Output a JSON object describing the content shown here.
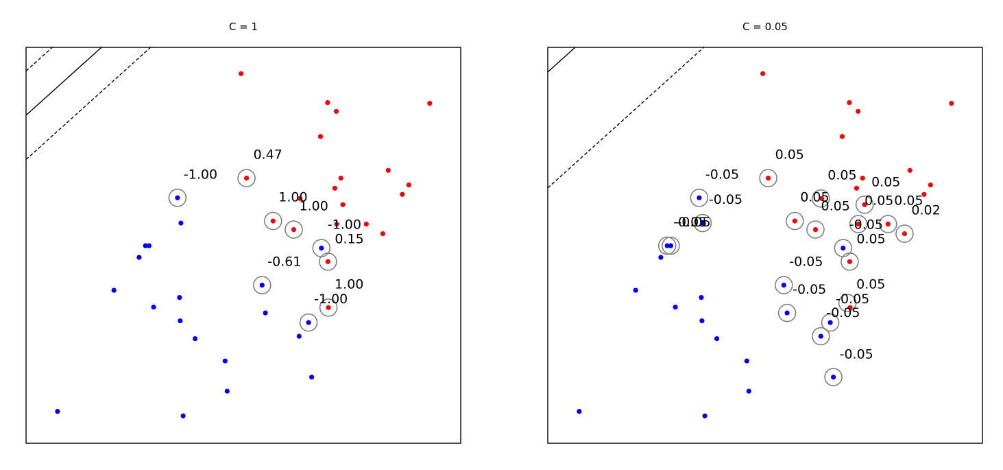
{
  "chart_data": [
    {
      "type": "scatter",
      "title": "C = 1",
      "xticks": "none",
      "yticks": "none",
      "grid": false,
      "colors": {
        "class_pos": "#ff0000",
        "class_neg": "#0000ff",
        "support_ring": "#808080"
      },
      "points_pos": [
        [
          313.6,
          38.3
        ],
        [
          439.9,
          80.6
        ],
        [
          452.6,
          93.3
        ],
        [
          588.8,
          81.6
        ],
        [
          429.5,
          129.9
        ],
        [
          528.3,
          179.3
        ],
        [
          459.2,
          190.6
        ],
        [
          558.3,
          200.6
        ],
        [
          450.4,
          205.3
        ],
        [
          548.8,
          214.3
        ],
        [
          399.5,
          220.3
        ],
        [
          462.1,
          229.3
        ],
        [
          321.6,
          190.6
        ],
        [
          496.3,
          257.6
        ],
        [
          453.1,
          257.6
        ],
        [
          360.3,
          253.1
        ],
        [
          390.5,
          265.6
        ],
        [
          520.4,
          271.6
        ],
        [
          440.4,
          312.3
        ],
        [
          441.1,
          379.3
        ]
      ],
      "points_neg": [
        [
          220.9,
          219.3
        ],
        [
          225.9,
          256.1
        ],
        [
          174.2,
          289.1
        ],
        [
          179.4,
          289.1
        ],
        [
          164.9,
          306.1
        ],
        [
          128.2,
          354.1
        ],
        [
          186.1,
          378.6
        ],
        [
          223.9,
          364.6
        ],
        [
          224.9,
          398.6
        ],
        [
          246.6,
          424.6
        ],
        [
          290.3,
          457.1
        ],
        [
          293.3,
          501.1
        ],
        [
          45.9,
          530.6
        ],
        [
          229.1,
          537.1
        ],
        [
          416.6,
          480.6
        ],
        [
          344.3,
          346.6
        ],
        [
          349.1,
          387.1
        ],
        [
          398.3,
          421.1
        ],
        [
          430.8,
          292.6
        ],
        [
          412.1,
          401.1
        ]
      ],
      "support_vectors": [
        [
          321.6,
          190.6
        ],
        [
          360.3,
          253.1
        ],
        [
          390.5,
          265.6
        ],
        [
          440.4,
          312.3
        ],
        [
          441.1,
          379.3
        ],
        [
          220.9,
          219.3
        ],
        [
          344.3,
          346.6
        ],
        [
          430.8,
          292.6
        ],
        [
          412.1,
          401.1
        ]
      ],
      "boundary": {
        "slope": -0.9,
        "intercept": 0
      },
      "margin_lines": [
        {
          "slope": -0.9,
          "intercept": -64.5
        },
        {
          "slope": -0.9,
          "intercept": 64.5
        }
      ],
      "xlim": [
        0,
        634
      ],
      "ylim": [
        577,
        0
      ],
      "annotations": [
        {
          "text": "0.47",
          "x": 331.6,
          "y": 162.6
        },
        {
          "text": "1.00",
          "x": 368.3,
          "y": 224.6
        },
        {
          "text": "1.00",
          "x": 398.5,
          "y": 237.6
        },
        {
          "text": "0.15",
          "x": 450.4,
          "y": 285.3
        },
        {
          "text": "1.00",
          "x": 450.1,
          "y": 351.3
        },
        {
          "text": "-1.00",
          "x": 229.9,
          "y": 191.3
        },
        {
          "text": "-0.61",
          "x": 352.3,
          "y": 318.6
        },
        {
          "text": "-1.00",
          "x": 439.8,
          "y": 264.6
        },
        {
          "text": "-1.00",
          "x": 420.1,
          "y": 373.1
        }
      ]
    },
    {
      "type": "scatter",
      "title": "C = 0.05",
      "xticks": "none",
      "yticks": "none",
      "grid": false,
      "colors": {
        "class_pos": "#ff0000",
        "class_neg": "#0000ff",
        "support_ring": "#808080"
      },
      "points_pos": [
        [
          313.6,
          38.3
        ],
        [
          439.9,
          80.6
        ],
        [
          452.6,
          93.3
        ],
        [
          588.8,
          81.6
        ],
        [
          429.5,
          129.9
        ],
        [
          528.3,
          179.3
        ],
        [
          459.2,
          190.6
        ],
        [
          558.3,
          200.6
        ],
        [
          450.4,
          205.3
        ],
        [
          548.8,
          214.3
        ],
        [
          399.5,
          220.3
        ],
        [
          462.1,
          229.3
        ],
        [
          321.6,
          190.6
        ],
        [
          496.3,
          257.6
        ],
        [
          453.1,
          257.6
        ],
        [
          360.3,
          253.1
        ],
        [
          390.5,
          265.6
        ],
        [
          520.4,
          271.6
        ],
        [
          440.4,
          312.3
        ],
        [
          441.1,
          379.3
        ]
      ],
      "points_neg": [
        [
          220.9,
          219.3
        ],
        [
          225.9,
          256.1
        ],
        [
          174.2,
          289.1
        ],
        [
          179.4,
          289.1
        ],
        [
          164.9,
          306.1
        ],
        [
          128.2,
          354.1
        ],
        [
          186.1,
          378.6
        ],
        [
          223.9,
          364.6
        ],
        [
          224.9,
          398.6
        ],
        [
          246.6,
          424.6
        ],
        [
          290.3,
          457.1
        ],
        [
          293.3,
          501.1
        ],
        [
          45.9,
          530.6
        ],
        [
          229.1,
          537.1
        ],
        [
          416.6,
          480.6
        ],
        [
          344.3,
          346.6
        ],
        [
          349.1,
          387.1
        ],
        [
          398.3,
          421.1
        ],
        [
          430.8,
          292.6
        ],
        [
          412.1,
          401.1
        ]
      ],
      "support_vectors": [
        [
          321.6,
          190.6
        ],
        [
          360.3,
          253.1
        ],
        [
          390.5,
          265.6
        ],
        [
          398.3,
          220.3
        ],
        [
          462.1,
          229.3
        ],
        [
          453.1,
          257.6
        ],
        [
          496.3,
          257.6
        ],
        [
          520.4,
          271.6
        ],
        [
          440.4,
          312.3
        ],
        [
          220.9,
          219.3
        ],
        [
          225.9,
          256.1
        ],
        [
          174.2,
          289.1
        ],
        [
          179.4,
          289.1
        ],
        [
          344.3,
          346.6
        ],
        [
          349.1,
          387.1
        ],
        [
          430.8,
          292.6
        ],
        [
          412.1,
          401.1
        ],
        [
          398.3,
          421.1
        ],
        [
          416.6,
          480.6
        ],
        [
          437.1,
          372.6
        ]
      ],
      "boundary": {
        "slope": -0.9,
        "intercept": 0
      },
      "margin_lines": [
        {
          "slope": -0.9,
          "intercept": -168.9
        },
        {
          "slope": -0.9,
          "intercept": 168.9
        }
      ],
      "xlim": [
        0,
        634
      ],
      "ylim": [
        577,
        0
      ],
      "annotations": [
        {
          "text": "0.05",
          "x": 331.6,
          "y": 162.6
        },
        {
          "text": "0.05",
          "x": 408.3,
          "y": 192.6
        },
        {
          "text": "0.05",
          "x": 472.1,
          "y": 202.6
        },
        {
          "text": "0.05",
          "x": 368.3,
          "y": 224.6
        },
        {
          "text": "0.05",
          "x": 398.5,
          "y": 237.6
        },
        {
          "text": "0.05",
          "x": 462.1,
          "y": 229.3
        },
        {
          "text": "0.05",
          "x": 505.3,
          "y": 229.3
        },
        {
          "text": "0.02",
          "x": 530.4,
          "y": 243.6
        },
        {
          "text": "0.05",
          "x": 450.4,
          "y": 285.3
        },
        {
          "text": "0.05",
          "x": 450.1,
          "y": 351.3
        },
        {
          "text": "-0.05",
          "x": 229.9,
          "y": 191.3
        },
        {
          "text": "-0.05",
          "x": 234.9,
          "y": 228.1
        },
        {
          "text": "-0.05",
          "x": 183.2,
          "y": 261.1
        },
        {
          "text": "-0.05",
          "x": 188.4,
          "y": 261.1
        },
        {
          "text": "-0.05",
          "x": 439.8,
          "y": 264.6
        },
        {
          "text": "-0.05",
          "x": 352.3,
          "y": 318.6
        },
        {
          "text": "-0.05",
          "x": 357.1,
          "y": 359.1
        },
        {
          "text": "-0.05",
          "x": 420.1,
          "y": 373.1
        },
        {
          "text": "-0.05",
          "x": 406.3,
          "y": 393.1
        },
        {
          "text": "-0.05",
          "x": 425.6,
          "y": 453.6
        }
      ]
    }
  ]
}
